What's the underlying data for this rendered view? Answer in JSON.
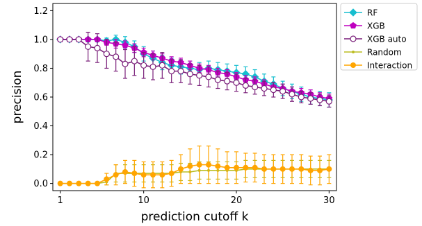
{
  "chart_data": {
    "type": "line",
    "title": "",
    "xlabel": "prediction cutoff k",
    "ylabel": "precision",
    "xlim": [
      0.2,
      30.8
    ],
    "ylim": [
      -0.05,
      1.25
    ],
    "xticks": [
      1,
      10,
      20,
      30
    ],
    "xtick_labels": [
      "1",
      "10",
      "20",
      "30"
    ],
    "yticks": [
      0.0,
      0.2,
      0.4,
      0.6,
      0.8,
      1.0,
      1.2
    ],
    "ytick_labels": [
      "0.0",
      "0.2",
      "0.4",
      "0.6",
      "0.8",
      "1.0",
      "1.2"
    ],
    "grid": false,
    "legend_position": "outside-top-right",
    "x": [
      1,
      2,
      3,
      4,
      5,
      6,
      7,
      8,
      9,
      10,
      11,
      12,
      13,
      14,
      15,
      16,
      17,
      18,
      19,
      20,
      21,
      22,
      23,
      24,
      25,
      26,
      27,
      28,
      29,
      30
    ],
    "series": [
      {
        "name": "RF",
        "color": "#17becf",
        "marker": "diamond",
        "values": [
          1.0,
          1.0,
          1.0,
          1.0,
          1.0,
          0.99,
          1.0,
          0.98,
          0.95,
          0.9,
          0.87,
          0.84,
          0.82,
          0.81,
          0.8,
          0.79,
          0.8,
          0.79,
          0.78,
          0.77,
          0.76,
          0.74,
          0.71,
          0.69,
          0.66,
          0.64,
          0.62,
          0.6,
          0.59,
          0.58
        ],
        "errors": [
          0.0,
          0.0,
          0.0,
          0.0,
          0.0,
          0.02,
          0.03,
          0.04,
          0.04,
          0.05,
          0.05,
          0.05,
          0.05,
          0.05,
          0.05,
          0.05,
          0.05,
          0.05,
          0.05,
          0.05,
          0.05,
          0.05,
          0.05,
          0.05,
          0.05,
          0.05,
          0.05,
          0.05,
          0.05,
          0.05
        ]
      },
      {
        "name": "XGB",
        "color": "#bf00bf",
        "marker": "pentagon",
        "values": [
          1.0,
          1.0,
          1.0,
          1.0,
          1.0,
          0.98,
          0.97,
          0.96,
          0.94,
          0.91,
          0.89,
          0.87,
          0.85,
          0.84,
          0.82,
          0.8,
          0.79,
          0.77,
          0.76,
          0.74,
          0.72,
          0.71,
          0.69,
          0.67,
          0.66,
          0.64,
          0.63,
          0.62,
          0.6,
          0.59
        ],
        "errors": [
          0.0,
          0.0,
          0.0,
          0.0,
          0.0,
          0.02,
          0.03,
          0.03,
          0.03,
          0.03,
          0.03,
          0.03,
          0.03,
          0.03,
          0.03,
          0.03,
          0.03,
          0.03,
          0.03,
          0.03,
          0.03,
          0.03,
          0.03,
          0.03,
          0.03,
          0.03,
          0.03,
          0.03,
          0.03,
          0.03
        ]
      },
      {
        "name": "XGB auto",
        "color": "#7a1f7a",
        "marker": "open-circle",
        "values": [
          1.0,
          1.0,
          1.0,
          0.95,
          0.94,
          0.9,
          0.88,
          0.83,
          0.85,
          0.82,
          0.81,
          0.82,
          0.78,
          0.78,
          0.76,
          0.75,
          0.74,
          0.72,
          0.71,
          0.7,
          0.68,
          0.67,
          0.66,
          0.65,
          0.64,
          0.62,
          0.6,
          0.59,
          0.58,
          0.57
        ],
        "errors": [
          0.0,
          0.0,
          0.0,
          0.1,
          0.1,
          0.1,
          0.1,
          0.1,
          0.1,
          0.09,
          0.09,
          0.09,
          0.08,
          0.08,
          0.07,
          0.07,
          0.07,
          0.06,
          0.06,
          0.06,
          0.05,
          0.05,
          0.05,
          0.05,
          0.05,
          0.05,
          0.04,
          0.04,
          0.04,
          0.04
        ]
      },
      {
        "name": "Random",
        "color": "#bcbd22",
        "marker": "small-dot",
        "values": [
          0.0,
          0.0,
          0.0,
          0.0,
          0.0,
          0.01,
          0.07,
          0.07,
          0.07,
          0.07,
          0.07,
          0.07,
          0.07,
          0.08,
          0.08,
          0.09,
          0.09,
          0.09,
          0.09,
          0.09,
          0.1,
          0.1,
          0.1,
          0.1,
          0.1,
          0.1,
          0.1,
          0.1,
          0.1,
          0.1
        ],
        "errors": [
          0.0,
          0.0,
          0.0,
          0.0,
          0.0,
          0.02,
          0.06,
          0.06,
          0.06,
          0.06,
          0.06,
          0.06,
          0.06,
          0.06,
          0.06,
          0.06,
          0.06,
          0.06,
          0.06,
          0.06,
          0.06,
          0.06,
          0.06,
          0.06,
          0.06,
          0.06,
          0.06,
          0.06,
          0.06,
          0.06
        ]
      },
      {
        "name": "Interaction",
        "color": "#ffa500",
        "marker": "circle",
        "values": [
          0.0,
          0.0,
          0.0,
          0.0,
          0.0,
          0.03,
          0.06,
          0.08,
          0.07,
          0.06,
          0.06,
          0.06,
          0.07,
          0.1,
          0.12,
          0.13,
          0.13,
          0.12,
          0.11,
          0.11,
          0.11,
          0.11,
          0.1,
          0.1,
          0.1,
          0.1,
          0.1,
          0.09,
          0.09,
          0.1
        ],
        "errors": [
          0.0,
          0.0,
          0.0,
          0.0,
          0.0,
          0.04,
          0.07,
          0.08,
          0.09,
          0.09,
          0.09,
          0.09,
          0.09,
          0.1,
          0.12,
          0.13,
          0.13,
          0.12,
          0.11,
          0.11,
          0.1,
          0.1,
          0.1,
          0.1,
          0.1,
          0.1,
          0.1,
          0.1,
          0.1,
          0.1
        ]
      }
    ]
  }
}
